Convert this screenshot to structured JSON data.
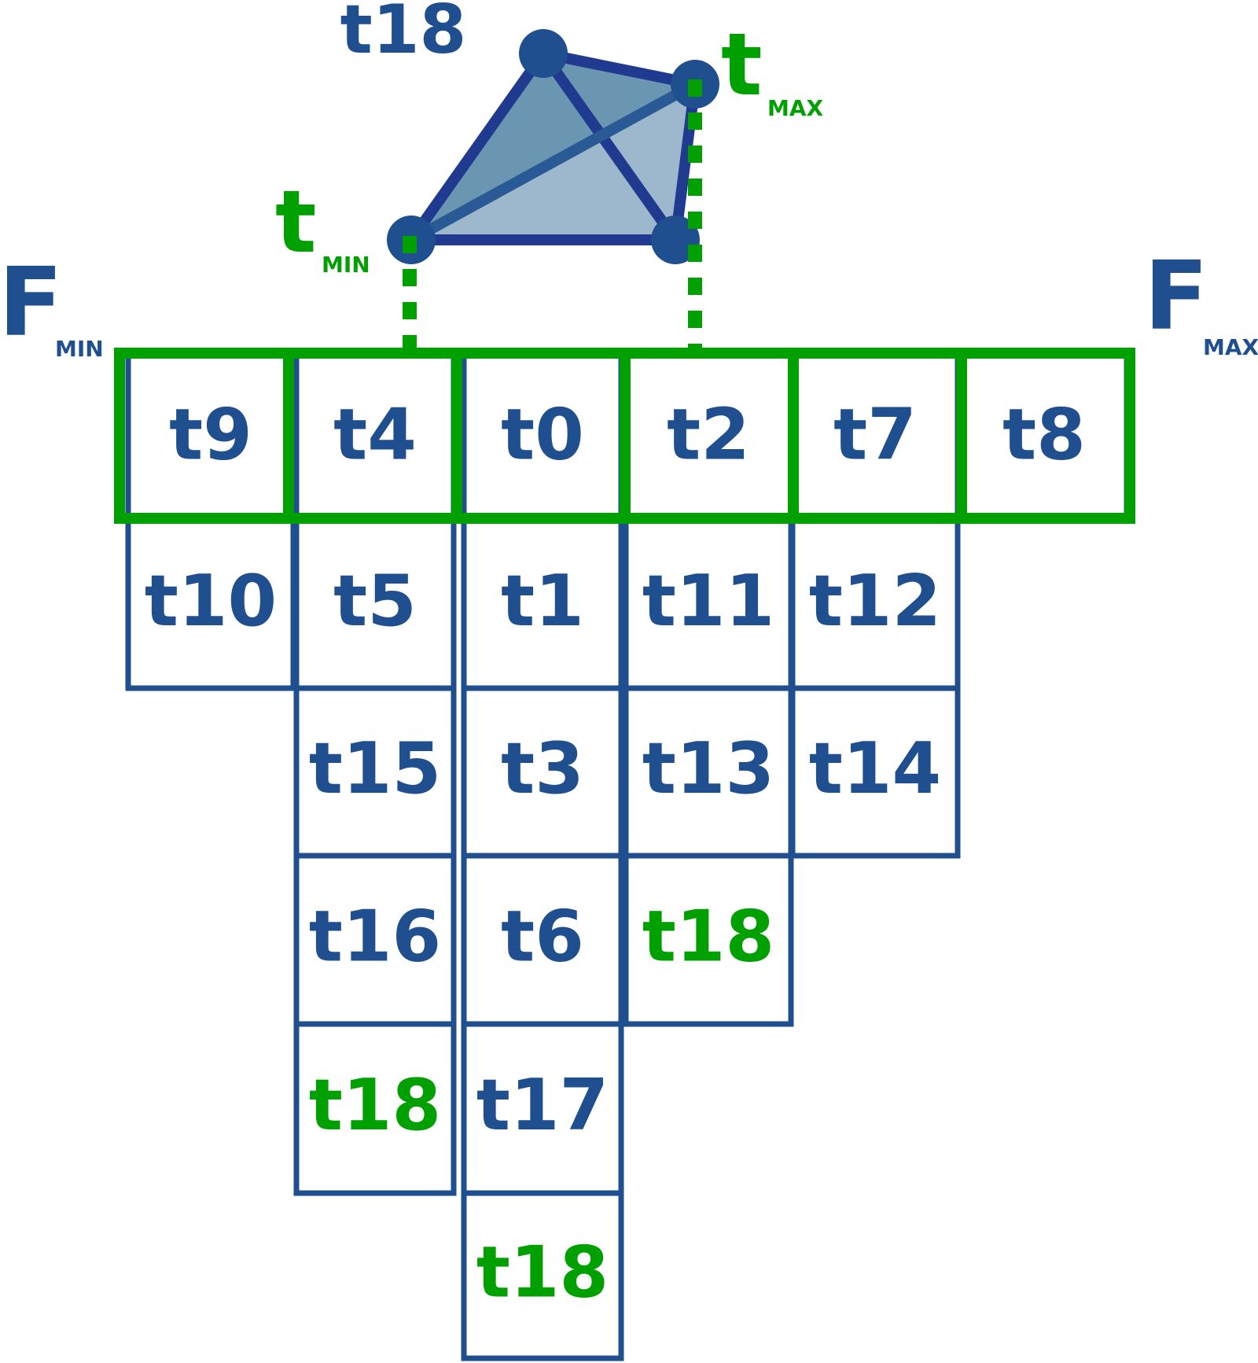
{
  "colors": {
    "blue": "#1f4f8f",
    "green": "#00a000",
    "edge": "#1f3a8f",
    "face_dark": "#6a96b2",
    "face_light": "#9db8cc"
  },
  "triangle": {
    "top_label": "t18",
    "tmin_main": "t",
    "tmin_sub": "MIN",
    "tmax_main": "t",
    "tmax_sub": "MAX"
  },
  "f_min": {
    "main": "F",
    "sub": "MIN"
  },
  "f_max": {
    "main": "F",
    "sub": "MAX"
  },
  "columns": [
    {
      "cells": [
        {
          "label": "t9"
        },
        {
          "label": "t10"
        }
      ]
    },
    {
      "cells": [
        {
          "label": "t4"
        },
        {
          "label": "t5"
        },
        {
          "label": "t15"
        },
        {
          "label": "t16"
        },
        {
          "label": "t18",
          "highlight": true
        }
      ]
    },
    {
      "cells": [
        {
          "label": "t0"
        },
        {
          "label": "t1"
        },
        {
          "label": "t3"
        },
        {
          "label": "t6"
        },
        {
          "label": "t17"
        },
        {
          "label": "t18",
          "highlight": true
        }
      ]
    },
    {
      "cells": [
        {
          "label": "t2"
        },
        {
          "label": "t11"
        },
        {
          "label": "t13"
        },
        {
          "label": "t18",
          "highlight": true
        }
      ]
    },
    {
      "cells": [
        {
          "label": "t7"
        },
        {
          "label": "t12"
        },
        {
          "label": "t14"
        }
      ]
    },
    {
      "cells": [
        {
          "label": "t8"
        }
      ]
    }
  ]
}
